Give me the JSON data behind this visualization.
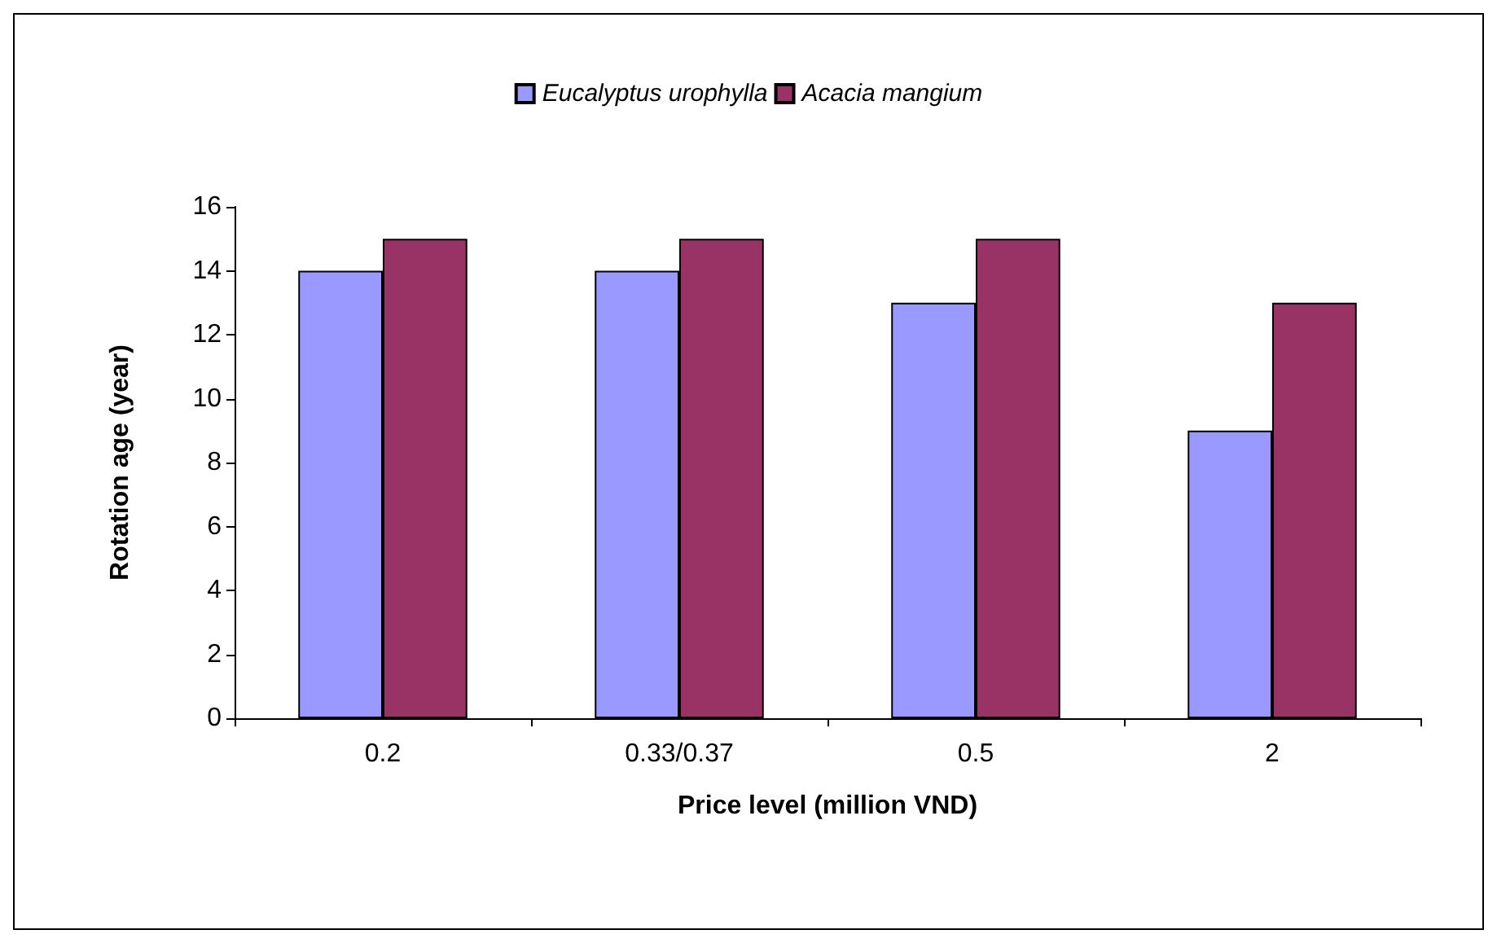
{
  "chart_data": {
    "type": "bar",
    "xlabel": "Price level (million VND)",
    "ylabel": "Rotation age (year)",
    "categories": [
      "0.2",
      "0.33/0.37",
      "0.5",
      "2"
    ],
    "series": [
      {
        "name": "Eucalyptus urophylla",
        "color": "#9999ff",
        "values": [
          14,
          14,
          13,
          9
        ]
      },
      {
        "name": "Acacia mangium",
        "color": "#993366",
        "values": [
          15,
          15,
          15,
          13
        ]
      }
    ],
    "ylim": [
      0,
      16
    ],
    "yticks": [
      0,
      2,
      4,
      6,
      8,
      10,
      12,
      14,
      16
    ],
    "grid": false,
    "legend": "top"
  }
}
